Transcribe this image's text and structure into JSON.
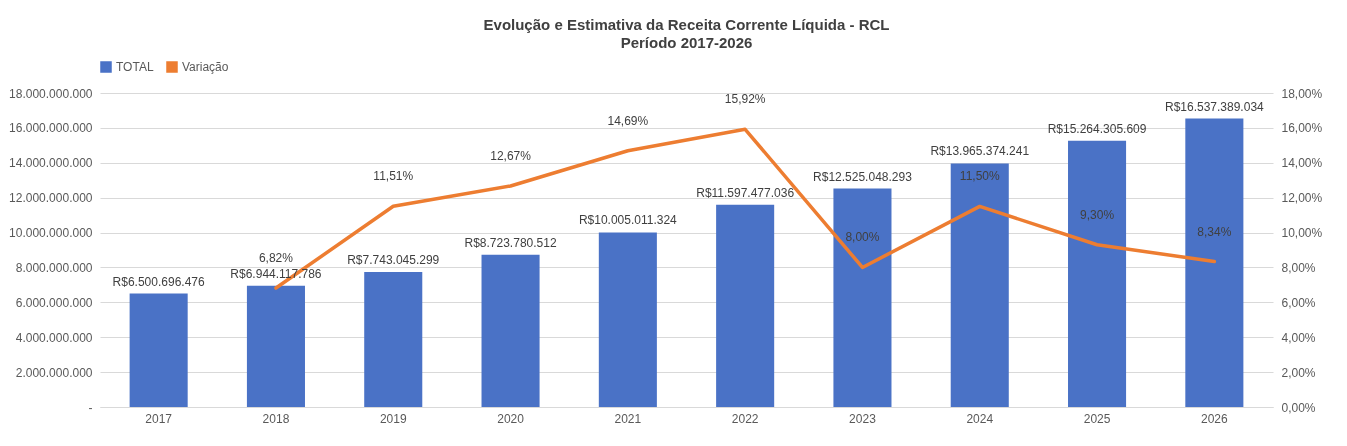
{
  "chart_data": {
    "type": "bar",
    "title": "Evolução e Estimativa da Receita Corrente Líquida - RCL",
    "subtitle": "Período 2017-2026",
    "categories": [
      "2017",
      "2018",
      "2019",
      "2020",
      "2021",
      "2022",
      "2023",
      "2024",
      "2025",
      "2026"
    ],
    "series": [
      {
        "name": "TOTAL",
        "color": "#4a72c6",
        "values": [
          6500696476,
          6944117786,
          7743045299,
          8723780512,
          10005011324,
          11597477036,
          12525048293,
          13965374241,
          15264305609,
          16537389034
        ],
        "value_labels": [
          "R$6.500.696.476",
          "R$6.944.117.786",
          "R$7.743.045.299",
          "R$8.723.780.512",
          "R$10.005.011.324",
          "R$11.597.477.036",
          "R$12.525.048.293",
          "R$13.965.374.241",
          "R$15.264.305.609",
          "R$16.537.389.034"
        ]
      },
      {
        "name": "Variação",
        "type": "line",
        "axis": "y2",
        "color": "#ed7d31",
        "values": [
          null,
          6.82,
          11.51,
          12.67,
          14.69,
          15.92,
          8.0,
          11.5,
          9.3,
          8.34
        ],
        "value_labels": [
          null,
          "6,82%",
          "11,51%",
          "12,67%",
          "14,69%",
          "15,92%",
          "8,00%",
          "11,50%",
          "9,30%",
          "8,34%"
        ]
      }
    ],
    "ylim": [
      0,
      18000000000
    ],
    "yticks": [
      {
        "value": 0,
        "label": "-"
      },
      {
        "value": 2000000000,
        "label": "2.000.000.000"
      },
      {
        "value": 4000000000,
        "label": "4.000.000.000"
      },
      {
        "value": 6000000000,
        "label": "6.000.000.000"
      },
      {
        "value": 8000000000,
        "label": "8.000.000.000"
      },
      {
        "value": 10000000000,
        "label": "10.000.000.000"
      },
      {
        "value": 12000000000,
        "label": "12.000.000.000"
      },
      {
        "value": 14000000000,
        "label": "14.000.000.000"
      },
      {
        "value": 16000000000,
        "label": "16.000.000.000"
      },
      {
        "value": 18000000000,
        "label": "18.000.000.000"
      }
    ],
    "y2lim": [
      0,
      18
    ],
    "y2ticks": [
      {
        "value": 0,
        "label": "0,00%"
      },
      {
        "value": 2,
        "label": "2,00%"
      },
      {
        "value": 4,
        "label": "4,00%"
      },
      {
        "value": 6,
        "label": "6,00%"
      },
      {
        "value": 8,
        "label": "8,00%"
      },
      {
        "value": 10,
        "label": "10,00%"
      },
      {
        "value": 12,
        "label": "12,00%"
      },
      {
        "value": 14,
        "label": "14,00%"
      },
      {
        "value": 16,
        "label": "16,00%"
      },
      {
        "value": 18,
        "label": "18,00%"
      }
    ],
    "grid": "y",
    "legend": "top",
    "marker": "none",
    "line_style": "solid"
  }
}
